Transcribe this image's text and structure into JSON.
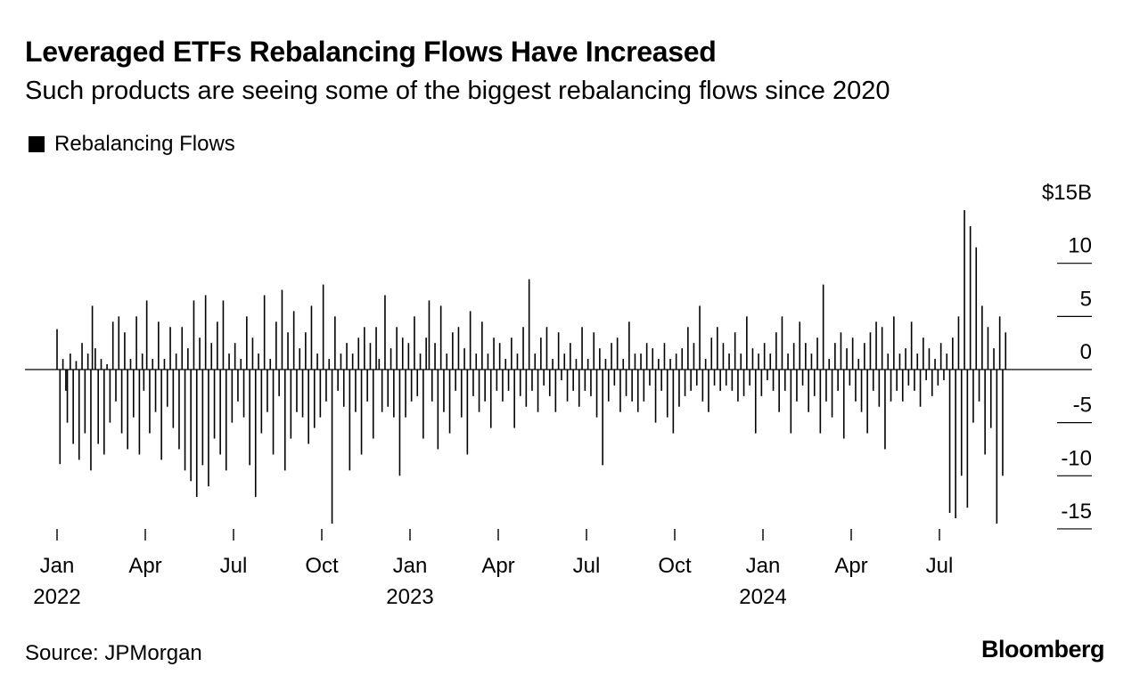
{
  "header": {
    "title": "Leveraged ETFs Rebalancing Flows Have Increased",
    "subtitle": "Such products are seeing some of the biggest rebalancing flows since 2020"
  },
  "legend": {
    "label": "Rebalancing Flows"
  },
  "footer": {
    "source": "Source: JPMorgan",
    "brand": "Bloomberg"
  },
  "chart_data": {
    "type": "bar",
    "title": "Leveraged ETFs Rebalancing Flows Have Increased",
    "subtitle": "Such products are seeing some of the biggest rebalancing flows since 2020",
    "series": [
      {
        "name": "Rebalancing Flows",
        "color": "#000000"
      }
    ],
    "unit": "$B",
    "ylim": [
      -15,
      15
    ],
    "y_ticks": [
      {
        "value": 15,
        "label": "$15B"
      },
      {
        "value": 10,
        "label": "10"
      },
      {
        "value": 5,
        "label": "5"
      },
      {
        "value": 0,
        "label": "0"
      },
      {
        "value": -5,
        "label": "-5"
      },
      {
        "value": -10,
        "label": "-10"
      },
      {
        "value": -15,
        "label": "-15"
      }
    ],
    "x_range_months": [
      0,
      33
    ],
    "x_ticks": [
      {
        "month": 0,
        "label": "Jan",
        "year": "2022"
      },
      {
        "month": 3,
        "label": "Apr"
      },
      {
        "month": 6,
        "label": "Jul"
      },
      {
        "month": 9,
        "label": "Oct"
      },
      {
        "month": 12,
        "label": "Jan",
        "year": "2023"
      },
      {
        "month": 15,
        "label": "Apr"
      },
      {
        "month": 18,
        "label": "Jul"
      },
      {
        "month": 21,
        "label": "Oct"
      },
      {
        "month": 24,
        "label": "Jan",
        "year": "2024"
      },
      {
        "month": 27,
        "label": "Apr"
      },
      {
        "month": 30,
        "label": "Jul"
      }
    ],
    "points_note": "Approximate daily rebalancing flows in $B, read from chart; x in months since Jan 2022",
    "points": [
      [
        0.0,
        3.8
      ],
      [
        0.1,
        -8.9
      ],
      [
        0.2,
        1.0
      ],
      [
        0.3,
        -2.0
      ],
      [
        0.35,
        -5.0
      ],
      [
        0.45,
        1.5
      ],
      [
        0.55,
        -7.0
      ],
      [
        0.65,
        0.8
      ],
      [
        0.75,
        -8.5
      ],
      [
        0.85,
        2.5
      ],
      [
        0.95,
        -6.0
      ],
      [
        1.05,
        1.5
      ],
      [
        1.15,
        -9.5
      ],
      [
        1.2,
        6.0
      ],
      [
        1.3,
        2.0
      ],
      [
        1.4,
        -7.0
      ],
      [
        1.5,
        1.0
      ],
      [
        1.6,
        -8.0
      ],
      [
        1.7,
        0.5
      ],
      [
        1.8,
        -5.0
      ],
      [
        1.9,
        4.5
      ],
      [
        2.0,
        -3.0
      ],
      [
        2.1,
        5.0
      ],
      [
        2.2,
        -6.0
      ],
      [
        2.3,
        3.5
      ],
      [
        2.4,
        -7.5
      ],
      [
        2.5,
        1.0
      ],
      [
        2.6,
        -4.5
      ],
      [
        2.7,
        5.0
      ],
      [
        2.8,
        -8.0
      ],
      [
        2.9,
        1.5
      ],
      [
        2.95,
        -2.0
      ],
      [
        3.05,
        6.5
      ],
      [
        3.15,
        -6.0
      ],
      [
        3.25,
        1.0
      ],
      [
        3.35,
        -4.0
      ],
      [
        3.45,
        4.5
      ],
      [
        3.55,
        -8.5
      ],
      [
        3.65,
        1.0
      ],
      [
        3.75,
        -3.5
      ],
      [
        3.85,
        4.0
      ],
      [
        3.95,
        -5.5
      ],
      [
        4.05,
        1.5
      ],
      [
        4.15,
        -7.5
      ],
      [
        4.25,
        4.0
      ],
      [
        4.35,
        -9.5
      ],
      [
        4.45,
        2.0
      ],
      [
        4.55,
        -10.5
      ],
      [
        4.65,
        6.5
      ],
      [
        4.75,
        -12.0
      ],
      [
        4.85,
        3.0
      ],
      [
        4.95,
        -9.0
      ],
      [
        5.05,
        7.0
      ],
      [
        5.15,
        -11.0
      ],
      [
        5.25,
        2.5
      ],
      [
        5.35,
        -6.5
      ],
      [
        5.45,
        4.5
      ],
      [
        5.55,
        -8.0
      ],
      [
        5.65,
        6.5
      ],
      [
        5.75,
        -9.5
      ],
      [
        5.85,
        1.5
      ],
      [
        5.95,
        -5.0
      ],
      [
        6.05,
        2.5
      ],
      [
        6.15,
        -3.0
      ],
      [
        6.25,
        1.0
      ],
      [
        6.35,
        -4.5
      ],
      [
        6.45,
        5.0
      ],
      [
        6.55,
        -9.0
      ],
      [
        6.65,
        3.0
      ],
      [
        6.75,
        -12.0
      ],
      [
        6.85,
        1.5
      ],
      [
        6.95,
        -6.0
      ],
      [
        7.05,
        7.0
      ],
      [
        7.15,
        -4.0
      ],
      [
        7.25,
        1.0
      ],
      [
        7.35,
        -8.0
      ],
      [
        7.45,
        4.5
      ],
      [
        7.55,
        -2.5
      ],
      [
        7.65,
        7.5
      ],
      [
        7.75,
        -9.5
      ],
      [
        7.85,
        3.5
      ],
      [
        7.95,
        -6.5
      ],
      [
        8.05,
        5.5
      ],
      [
        8.15,
        -4.0
      ],
      [
        8.25,
        2.0
      ],
      [
        8.35,
        -4.5
      ],
      [
        8.45,
        3.5
      ],
      [
        8.55,
        -7.0
      ],
      [
        8.65,
        6.0
      ],
      [
        8.75,
        -5.5
      ],
      [
        8.85,
        1.5
      ],
      [
        8.95,
        -4.5
      ],
      [
        9.05,
        8.0
      ],
      [
        9.15,
        -3.0
      ],
      [
        9.25,
        1.0
      ],
      [
        9.35,
        -14.5
      ],
      [
        9.45,
        5.0
      ],
      [
        9.55,
        -2.0
      ],
      [
        9.65,
        1.5
      ],
      [
        9.75,
        -3.5
      ],
      [
        9.85,
        2.5
      ],
      [
        9.95,
        -9.5
      ],
      [
        10.05,
        1.5
      ],
      [
        10.15,
        -4.0
      ],
      [
        10.25,
        3.0
      ],
      [
        10.35,
        -8.0
      ],
      [
        10.45,
        4.0
      ],
      [
        10.55,
        -3.0
      ],
      [
        10.65,
        2.5
      ],
      [
        10.75,
        -6.5
      ],
      [
        10.85,
        4.0
      ],
      [
        10.95,
        1.0
      ],
      [
        11.05,
        -4.0
      ],
      [
        11.15,
        7.0
      ],
      [
        11.25,
        -3.5
      ],
      [
        11.35,
        2.0
      ],
      [
        11.45,
        -4.5
      ],
      [
        11.55,
        4.0
      ],
      [
        11.65,
        -10.0
      ],
      [
        11.75,
        3.0
      ],
      [
        11.85,
        -4.5
      ],
      [
        11.95,
        2.5
      ],
      [
        12.05,
        -3.0
      ],
      [
        12.15,
        5.0
      ],
      [
        12.25,
        -2.5
      ],
      [
        12.35,
        1.5
      ],
      [
        12.45,
        -6.5
      ],
      [
        12.55,
        3.0
      ],
      [
        12.65,
        6.5
      ],
      [
        12.75,
        -3.0
      ],
      [
        12.85,
        2.5
      ],
      [
        12.95,
        -7.5
      ],
      [
        13.05,
        6.0
      ],
      [
        13.15,
        -4.0
      ],
      [
        13.25,
        1.5
      ],
      [
        13.35,
        -6.0
      ],
      [
        13.45,
        3.5
      ],
      [
        13.55,
        -2.0
      ],
      [
        13.65,
        4.0
      ],
      [
        13.75,
        -4.5
      ],
      [
        13.85,
        2.0
      ],
      [
        13.95,
        -8.0
      ],
      [
        14.05,
        5.5
      ],
      [
        14.15,
        -2.5
      ],
      [
        14.25,
        1.5
      ],
      [
        14.35,
        -4.0
      ],
      [
        14.45,
        4.5
      ],
      [
        14.55,
        -3.0
      ],
      [
        14.65,
        1.5
      ],
      [
        14.75,
        -5.5
      ],
      [
        14.85,
        3.0
      ],
      [
        14.95,
        -2.0
      ],
      [
        15.05,
        2.5
      ],
      [
        15.15,
        -3.0
      ],
      [
        15.25,
        1.0
      ],
      [
        15.35,
        -2.0
      ],
      [
        15.45,
        3.0
      ],
      [
        15.55,
        -5.5
      ],
      [
        15.65,
        1.5
      ],
      [
        15.75,
        -2.5
      ],
      [
        15.85,
        4.0
      ],
      [
        15.95,
        -3.5
      ],
      [
        16.05,
        8.5
      ],
      [
        16.15,
        -2.0
      ],
      [
        16.25,
        1.5
      ],
      [
        16.35,
        -4.0
      ],
      [
        16.45,
        3.0
      ],
      [
        16.55,
        -1.5
      ],
      [
        16.65,
        4.0
      ],
      [
        16.75,
        -2.5
      ],
      [
        16.85,
        1.0
      ],
      [
        16.95,
        -4.0
      ],
      [
        17.05,
        3.5
      ],
      [
        17.15,
        -1.0
      ],
      [
        17.25,
        1.5
      ],
      [
        17.35,
        -3.0
      ],
      [
        17.45,
        2.5
      ],
      [
        17.55,
        -2.0
      ],
      [
        17.65,
        1.0
      ],
      [
        17.75,
        -3.5
      ],
      [
        17.85,
        4.0
      ],
      [
        17.95,
        -2.0
      ],
      [
        18.05,
        1.0
      ],
      [
        18.15,
        -2.5
      ],
      [
        18.25,
        3.5
      ],
      [
        18.35,
        -4.5
      ],
      [
        18.45,
        2.0
      ],
      [
        18.55,
        -9.0
      ],
      [
        18.65,
        1.0
      ],
      [
        18.75,
        -3.0
      ],
      [
        18.85,
        2.5
      ],
      [
        18.95,
        -1.5
      ],
      [
        19.05,
        3.0
      ],
      [
        19.15,
        -4.0
      ],
      [
        19.25,
        1.0
      ],
      [
        19.35,
        -2.5
      ],
      [
        19.45,
        4.5
      ],
      [
        19.55,
        -3.0
      ],
      [
        19.65,
        1.5
      ],
      [
        19.75,
        -4.0
      ],
      [
        19.85,
        1.5
      ],
      [
        19.95,
        -3.0
      ],
      [
        20.05,
        2.5
      ],
      [
        20.15,
        -1.5
      ],
      [
        20.25,
        2.0
      ],
      [
        20.35,
        -5.0
      ],
      [
        20.45,
        1.0
      ],
      [
        20.55,
        -2.0
      ],
      [
        20.65,
        2.5
      ],
      [
        20.75,
        -4.5
      ],
      [
        20.85,
        1.0
      ],
      [
        20.95,
        -6.0
      ],
      [
        21.05,
        1.5
      ],
      [
        21.15,
        -3.5
      ],
      [
        21.25,
        2.0
      ],
      [
        21.35,
        -2.5
      ],
      [
        21.45,
        4.0
      ],
      [
        21.55,
        -2.0
      ],
      [
        21.65,
        2.5
      ],
      [
        21.75,
        -1.5
      ],
      [
        21.85,
        6.0
      ],
      [
        21.95,
        -3.0
      ],
      [
        22.05,
        1.0
      ],
      [
        22.15,
        -4.0
      ],
      [
        22.25,
        3.0
      ],
      [
        22.35,
        -1.5
      ],
      [
        22.45,
        4.0
      ],
      [
        22.55,
        -2.0
      ],
      [
        22.65,
        2.5
      ],
      [
        22.75,
        -1.5
      ],
      [
        22.85,
        1.5
      ],
      [
        22.95,
        -2.0
      ],
      [
        23.05,
        3.5
      ],
      [
        23.15,
        -3.0
      ],
      [
        23.25,
        1.5
      ],
      [
        23.35,
        -2.5
      ],
      [
        23.45,
        5.0
      ],
      [
        23.55,
        -1.5
      ],
      [
        23.65,
        2.0
      ],
      [
        23.75,
        -6.0
      ],
      [
        23.85,
        1.5
      ],
      [
        23.95,
        -2.5
      ],
      [
        24.05,
        2.5
      ],
      [
        24.15,
        -1.0
      ],
      [
        24.25,
        1.5
      ],
      [
        24.35,
        -2.0
      ],
      [
        24.45,
        3.5
      ],
      [
        24.55,
        -4.0
      ],
      [
        24.65,
        5.0
      ],
      [
        24.75,
        -2.0
      ],
      [
        24.85,
        1.5
      ],
      [
        24.95,
        -6.0
      ],
      [
        25.05,
        2.5
      ],
      [
        25.15,
        -3.0
      ],
      [
        25.25,
        4.5
      ],
      [
        25.35,
        -1.5
      ],
      [
        25.45,
        2.5
      ],
      [
        25.55,
        -4.0
      ],
      [
        25.65,
        1.5
      ],
      [
        25.75,
        -2.5
      ],
      [
        25.85,
        3.0
      ],
      [
        25.95,
        -6.0
      ],
      [
        26.05,
        8.0
      ],
      [
        26.15,
        -3.0
      ],
      [
        26.25,
        1.0
      ],
      [
        26.35,
        -4.5
      ],
      [
        26.45,
        2.5
      ],
      [
        26.55,
        -2.0
      ],
      [
        26.65,
        3.5
      ],
      [
        26.75,
        -6.5
      ],
      [
        26.85,
        2.0
      ],
      [
        26.95,
        -1.5
      ],
      [
        27.05,
        3.0
      ],
      [
        27.15,
        -3.0
      ],
      [
        27.25,
        1.0
      ],
      [
        27.35,
        -4.0
      ],
      [
        27.45,
        2.5
      ],
      [
        27.55,
        -6.0
      ],
      [
        27.65,
        3.5
      ],
      [
        27.75,
        -2.0
      ],
      [
        27.85,
        4.5
      ],
      [
        27.95,
        -3.5
      ],
      [
        28.05,
        4.0
      ],
      [
        28.15,
        -7.5
      ],
      [
        28.25,
        1.5
      ],
      [
        28.35,
        -3.0
      ],
      [
        28.45,
        5.0
      ],
      [
        28.55,
        -2.0
      ],
      [
        28.65,
        1.5
      ],
      [
        28.75,
        -3.0
      ],
      [
        28.85,
        2.0
      ],
      [
        28.95,
        -1.5
      ],
      [
        29.05,
        4.5
      ],
      [
        29.15,
        -2.0
      ],
      [
        29.25,
        1.5
      ],
      [
        29.35,
        -3.5
      ],
      [
        29.45,
        3.0
      ],
      [
        29.55,
        -1.0
      ],
      [
        29.65,
        2.0
      ],
      [
        29.75,
        -2.5
      ],
      [
        29.85,
        1.0
      ],
      [
        29.95,
        -1.5
      ],
      [
        30.05,
        2.5
      ],
      [
        30.15,
        -1.0
      ],
      [
        30.25,
        1.5
      ],
      [
        30.35,
        -13.5
      ],
      [
        30.45,
        3.0
      ],
      [
        30.55,
        -14.0
      ],
      [
        30.65,
        5.0
      ],
      [
        30.75,
        -10.0
      ],
      [
        30.85,
        15.0
      ],
      [
        30.95,
        -13.0
      ],
      [
        31.05,
        13.5
      ],
      [
        31.15,
        -5.0
      ],
      [
        31.25,
        11.5
      ],
      [
        31.35,
        -3.0
      ],
      [
        31.45,
        6.0
      ],
      [
        31.55,
        -8.0
      ],
      [
        31.65,
        4.0
      ],
      [
        31.75,
        -5.5
      ],
      [
        31.85,
        2.0
      ],
      [
        31.95,
        -14.5
      ],
      [
        32.05,
        5.0
      ],
      [
        32.15,
        -10.0
      ],
      [
        32.25,
        3.5
      ]
    ]
  }
}
